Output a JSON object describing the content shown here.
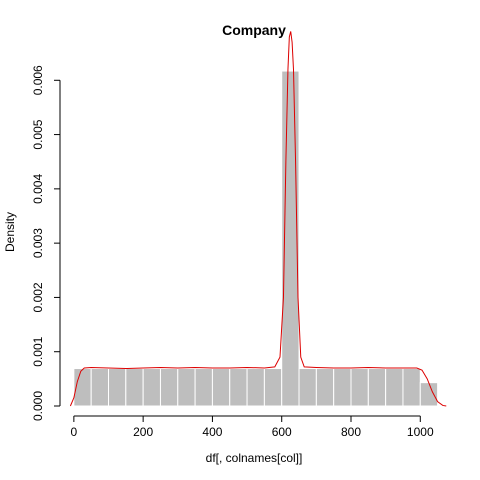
{
  "chart_data": {
    "type": "histogram",
    "title": "Company",
    "xlabel": "df[, colnames[col]]",
    "ylabel": "Density",
    "xlim": [
      -40,
      1080
    ],
    "ylim": [
      0,
      0.0063
    ],
    "xticks": [
      0,
      200,
      400,
      600,
      800,
      1000
    ],
    "yticks": [
      0.0,
      0.001,
      0.002,
      0.003,
      0.004,
      0.005,
      0.006
    ],
    "ytick_labels": [
      "0.000",
      "0.001",
      "0.002",
      "0.003",
      "0.004",
      "0.005",
      "0.006"
    ],
    "bins": [
      {
        "x0": 0,
        "x1": 50,
        "density": 0.00069
      },
      {
        "x0": 50,
        "x1": 100,
        "density": 0.00069
      },
      {
        "x0": 100,
        "x1": 150,
        "density": 0.00069
      },
      {
        "x0": 150,
        "x1": 200,
        "density": 0.00069
      },
      {
        "x0": 200,
        "x1": 250,
        "density": 0.00069
      },
      {
        "x0": 250,
        "x1": 300,
        "density": 0.00069
      },
      {
        "x0": 300,
        "x1": 350,
        "density": 0.00069
      },
      {
        "x0": 350,
        "x1": 400,
        "density": 0.00069
      },
      {
        "x0": 400,
        "x1": 450,
        "density": 0.00069
      },
      {
        "x0": 450,
        "x1": 500,
        "density": 0.00069
      },
      {
        "x0": 500,
        "x1": 550,
        "density": 0.00069
      },
      {
        "x0": 550,
        "x1": 600,
        "density": 0.00069
      },
      {
        "x0": 600,
        "x1": 650,
        "density": 0.00617
      },
      {
        "x0": 650,
        "x1": 700,
        "density": 0.00069
      },
      {
        "x0": 700,
        "x1": 750,
        "density": 0.00069
      },
      {
        "x0": 750,
        "x1": 800,
        "density": 0.00069
      },
      {
        "x0": 800,
        "x1": 850,
        "density": 0.00069
      },
      {
        "x0": 850,
        "x1": 900,
        "density": 0.00069
      },
      {
        "x0": 900,
        "x1": 950,
        "density": 0.00069
      },
      {
        "x0": 950,
        "x1": 1000,
        "density": 0.00069
      },
      {
        "x0": 1000,
        "x1": 1050,
        "density": 0.00043
      }
    ],
    "density_curve": {
      "color": "#dd0000",
      "points": [
        [
          -10,
          0.0
        ],
        [
          0,
          0.00015
        ],
        [
          10,
          0.00045
        ],
        [
          20,
          0.00064
        ],
        [
          30,
          0.0007
        ],
        [
          50,
          0.00071
        ],
        [
          100,
          0.0007
        ],
        [
          150,
          0.00069
        ],
        [
          200,
          0.0007
        ],
        [
          250,
          0.00071
        ],
        [
          300,
          0.0007
        ],
        [
          350,
          0.00071
        ],
        [
          400,
          0.0007
        ],
        [
          450,
          0.0007
        ],
        [
          500,
          0.00071
        ],
        [
          550,
          0.0007
        ],
        [
          580,
          0.00072
        ],
        [
          595,
          0.0009
        ],
        [
          605,
          0.002
        ],
        [
          612,
          0.0045
        ],
        [
          618,
          0.0062
        ],
        [
          622,
          0.0068
        ],
        [
          626,
          0.0069
        ],
        [
          630,
          0.0067
        ],
        [
          634,
          0.0062
        ],
        [
          640,
          0.0045
        ],
        [
          647,
          0.002
        ],
        [
          655,
          0.0009
        ],
        [
          665,
          0.00072
        ],
        [
          700,
          0.00071
        ],
        [
          750,
          0.0007
        ],
        [
          800,
          0.0007
        ],
        [
          850,
          0.00071
        ],
        [
          900,
          0.0007
        ],
        [
          950,
          0.0007
        ],
        [
          990,
          0.0007
        ],
        [
          1005,
          0.00066
        ],
        [
          1020,
          0.0005
        ],
        [
          1035,
          0.00026
        ],
        [
          1050,
          8e-05
        ],
        [
          1065,
          1e-05
        ],
        [
          1075,
          0.0
        ]
      ]
    },
    "bar_fill": "#bebebe",
    "bar_border": "#ffffff"
  }
}
